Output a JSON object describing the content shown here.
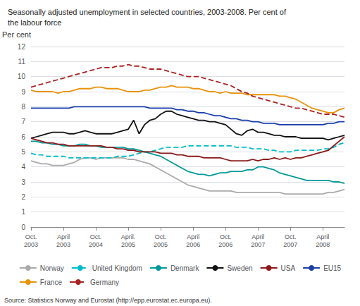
{
  "chart_data": {
    "type": "line",
    "title": "Seasonally adjusted unemployment in selected countries, 2003-2008. Per cent of",
    "subtitle": "the labour force",
    "ylabel": "Per cent",
    "annotations": [
      "Source: Statistics Norway and Eurostat (http://epp.eurostat.ec.europa.eu)."
    ],
    "categories": [
      "Oct.\n2003",
      null,
      null,
      null,
      null,
      null,
      "April\n2003",
      null,
      null,
      null,
      null,
      null,
      "Oct.\n2004",
      null,
      null,
      null,
      null,
      null,
      "April.\n2005",
      null,
      null,
      null,
      null,
      null,
      "Oct.\n2005",
      null,
      null,
      null,
      null,
      null,
      "April\n2006",
      null,
      null,
      null,
      null,
      null,
      "Oct.\n2006",
      null,
      null,
      null,
      null,
      null,
      "April\n2007",
      null,
      null,
      null,
      null,
      null,
      "Oct.\n2007",
      null,
      null,
      null,
      null,
      null,
      "April\n2008",
      null,
      null,
      null,
      null
    ],
    "ylim": [
      0,
      12
    ],
    "yticks": [
      0,
      1,
      2,
      3,
      4,
      5,
      6,
      7,
      8,
      9,
      10,
      11,
      12
    ],
    "grid": true,
    "legend": "bottom",
    "series": [
      {
        "name": "Norway",
        "color": "#aaaaaa",
        "line_style": "solid",
        "values": [
          4.4,
          4.3,
          4.2,
          4.2,
          4.1,
          4.1,
          4.1,
          4.2,
          4.3,
          4.5,
          4.6,
          4.6,
          4.5,
          4.6,
          4.6,
          4.6,
          4.6,
          4.6,
          4.5,
          4.5,
          4.4,
          4.3,
          4.2,
          4.0,
          3.8,
          3.6,
          3.4,
          3.2,
          3.0,
          2.8,
          2.7,
          2.6,
          2.5,
          2.4,
          2.4,
          2.4,
          2.4,
          2.4,
          2.3,
          2.3,
          2.3,
          2.3,
          2.3,
          2.3,
          2.3,
          2.3,
          2.3,
          2.2,
          2.2,
          2.2,
          2.2,
          2.2,
          2.2,
          2.2,
          2.2,
          2.3,
          2.3,
          2.4,
          2.5
        ]
      },
      {
        "name": "United Kingdom",
        "color": "#00bbcc",
        "line_style": "dashed",
        "values": [
          4.9,
          4.8,
          4.8,
          4.7,
          4.7,
          4.7,
          4.7,
          4.6,
          4.6,
          4.6,
          4.6,
          4.6,
          4.6,
          4.6,
          4.6,
          4.6,
          4.7,
          4.7,
          4.7,
          4.8,
          4.9,
          5.0,
          5.0,
          5.1,
          5.2,
          5.3,
          5.3,
          5.3,
          5.3,
          5.4,
          5.4,
          5.4,
          5.4,
          5.4,
          5.4,
          5.4,
          5.4,
          5.4,
          5.3,
          5.3,
          5.3,
          5.2,
          5.2,
          5.2,
          5.1,
          5.1,
          5.0,
          5.0,
          5.0,
          5.1,
          5.1,
          5.1,
          5.1,
          5.1,
          5.2,
          5.2,
          5.3,
          5.5,
          5.6
        ]
      },
      {
        "name": "Denmark",
        "color": "#009999",
        "line_style": "solid",
        "values": [
          5.7,
          5.7,
          5.6,
          5.6,
          5.5,
          5.5,
          5.4,
          5.4,
          5.4,
          5.5,
          5.5,
          5.4,
          5.4,
          5.3,
          5.3,
          5.3,
          5.3,
          5.3,
          5.2,
          5.2,
          5.1,
          5.0,
          4.9,
          4.8,
          4.7,
          4.5,
          4.3,
          4.1,
          3.9,
          3.7,
          3.6,
          3.5,
          3.5,
          3.4,
          3.5,
          3.6,
          3.6,
          3.7,
          3.7,
          3.7,
          3.8,
          3.8,
          4.0,
          4.0,
          3.9,
          3.8,
          3.6,
          3.5,
          3.4,
          3.3,
          3.2,
          3.1,
          3.1,
          3.1,
          3.1,
          3.1,
          3.0,
          3.0,
          2.9
        ]
      },
      {
        "name": "Sweden",
        "color": "#111111",
        "line_style": "solid",
        "values": [
          5.9,
          6.0,
          6.1,
          6.2,
          6.3,
          6.3,
          6.3,
          6.2,
          6.2,
          6.3,
          6.4,
          6.3,
          6.2,
          6.2,
          6.2,
          6.2,
          6.3,
          6.4,
          6.5,
          7.1,
          6.2,
          6.8,
          7.1,
          7.2,
          7.5,
          7.7,
          7.7,
          7.5,
          7.4,
          7.3,
          7.2,
          7.1,
          7.1,
          7.0,
          7.0,
          6.9,
          6.8,
          6.5,
          6.2,
          6.1,
          6.4,
          6.5,
          6.3,
          6.3,
          6.2,
          6.1,
          6.1,
          6.0,
          6.0,
          6.0,
          5.9,
          5.9,
          5.9,
          5.9,
          5.9,
          5.8,
          5.9,
          6.0,
          6.1
        ]
      },
      {
        "name": "USA",
        "color": "#8b1a1a",
        "line_style": "solid",
        "values": [
          5.9,
          5.8,
          5.7,
          5.6,
          5.6,
          5.5,
          5.5,
          5.4,
          5.4,
          5.4,
          5.4,
          5.4,
          5.4,
          5.4,
          5.3,
          5.3,
          5.2,
          5.2,
          5.1,
          5.1,
          5.0,
          5.0,
          5.0,
          5.0,
          4.9,
          4.9,
          4.9,
          4.8,
          4.8,
          4.7,
          4.7,
          4.7,
          4.6,
          4.6,
          4.6,
          4.6,
          4.5,
          4.4,
          4.4,
          4.4,
          4.4,
          4.5,
          4.4,
          4.5,
          4.5,
          4.6,
          4.5,
          4.6,
          4.5,
          4.6,
          4.6,
          4.7,
          4.8,
          4.9,
          5.0,
          5.1,
          5.4,
          5.7,
          6.0
        ]
      },
      {
        "name": "EU15",
        "color": "#1a3faa",
        "line_style": "solid",
        "values": [
          7.9,
          7.9,
          7.9,
          7.9,
          7.9,
          7.9,
          7.9,
          7.9,
          8.0,
          8.0,
          8.0,
          8.0,
          8.0,
          8.0,
          8.0,
          8.0,
          8.0,
          8.0,
          8.0,
          8.0,
          8.0,
          8.0,
          7.9,
          7.9,
          7.9,
          7.9,
          7.9,
          7.8,
          7.8,
          7.7,
          7.7,
          7.6,
          7.6,
          7.5,
          7.4,
          7.4,
          7.3,
          7.2,
          7.2,
          7.1,
          7.1,
          7.0,
          7.0,
          6.9,
          6.9,
          6.9,
          6.8,
          6.8,
          6.8,
          6.8,
          6.8,
          6.8,
          6.8,
          6.8,
          6.8,
          6.9,
          6.9,
          7.0,
          7.0
        ]
      },
      {
        "name": "France",
        "color": "#e8930a",
        "line_style": "solid",
        "values": [
          9.1,
          9.0,
          9.0,
          9.0,
          9.0,
          8.9,
          9.0,
          9.0,
          9.1,
          9.2,
          9.2,
          9.2,
          9.3,
          9.3,
          9.2,
          9.2,
          9.2,
          9.1,
          9.0,
          9.0,
          9.0,
          9.1,
          9.1,
          9.2,
          9.3,
          9.3,
          9.4,
          9.3,
          9.3,
          9.3,
          9.2,
          9.2,
          9.1,
          9.0,
          9.0,
          8.9,
          9.0,
          8.9,
          8.9,
          8.9,
          8.8,
          8.8,
          8.8,
          8.8,
          8.8,
          8.8,
          8.7,
          8.7,
          8.6,
          8.5,
          8.3,
          8.1,
          7.9,
          7.8,
          7.7,
          7.6,
          7.6,
          7.8,
          7.9
        ]
      },
      {
        "name": "Germany",
        "color": "#aa2222",
        "line_style": "dashed",
        "values": [
          9.3,
          9.4,
          9.5,
          9.6,
          9.7,
          9.8,
          9.9,
          10.0,
          10.1,
          10.2,
          10.3,
          10.4,
          10.5,
          10.6,
          10.6,
          10.6,
          10.7,
          10.7,
          10.8,
          10.7,
          10.7,
          10.6,
          10.5,
          10.5,
          10.5,
          10.4,
          10.3,
          10.2,
          10.1,
          10.0,
          10.0,
          10.0,
          9.9,
          9.8,
          9.7,
          9.6,
          9.5,
          9.4,
          9.2,
          9.0,
          8.9,
          8.7,
          8.6,
          8.5,
          8.4,
          8.3,
          8.2,
          8.1,
          8.0,
          7.9,
          7.9,
          7.8,
          7.7,
          7.6,
          7.5,
          7.5,
          7.5,
          7.4,
          7.3
        ]
      }
    ]
  }
}
